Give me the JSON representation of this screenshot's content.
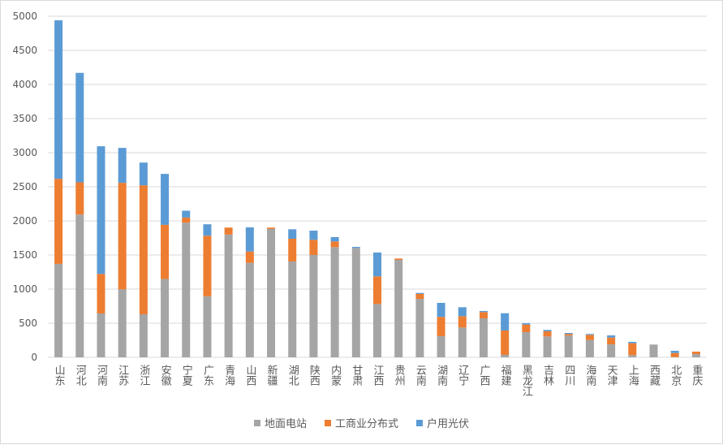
{
  "chart_data": {
    "type": "bar",
    "stacked": true,
    "title": "",
    "xlabel": "",
    "ylabel": "",
    "ylim": [
      0,
      5000
    ],
    "yticks": [
      0,
      500,
      1000,
      1500,
      2000,
      2500,
      3000,
      3500,
      4000,
      4500,
      5000
    ],
    "grid": true,
    "legend": "bottom",
    "categories": [
      "山东",
      "河北",
      "河南",
      "江苏",
      "浙江",
      "安徽",
      "宁夏",
      "广东",
      "青海",
      "山西",
      "新疆",
      "湖北",
      "陕西",
      "内蒙",
      "甘肃",
      "江西",
      "贵州",
      "云南",
      "湖南",
      "辽宁",
      "广西",
      "福建",
      "黑龙江",
      "吉林",
      "四川",
      "海南",
      "天津",
      "上海",
      "西藏",
      "北京",
      "重庆"
    ],
    "series": [
      {
        "name": "地面电站",
        "color": "#A5A5A5",
        "values": [
          1370,
          2093,
          643,
          997,
          631,
          1148,
          1974,
          894,
          1799,
          1384,
          1881,
          1405,
          1500,
          1615,
          1603,
          782,
          1428,
          857,
          310,
          437,
          571,
          36,
          369,
          306,
          318,
          254,
          190,
          32,
          187,
          4,
          48
        ]
      },
      {
        "name": "工商业分布式",
        "color": "#ED7D31",
        "values": [
          1247,
          472,
          580,
          1561,
          1891,
          794,
          75,
          889,
          103,
          167,
          20,
          333,
          222,
          83,
          0,
          405,
          20,
          72,
          282,
          166,
          92,
          357,
          111,
          75,
          24,
          75,
          99,
          174,
          0,
          59,
          35
        ]
      },
      {
        "name": "户用光伏",
        "color": "#5B9BD5",
        "values": [
          2323,
          1605,
          1871,
          512,
          333,
          747,
          100,
          167,
          0,
          354,
          0,
          139,
          135,
          64,
          16,
          349,
          0,
          15,
          206,
          131,
          16,
          253,
          20,
          20,
          15,
          13,
          32,
          20,
          0,
          32,
          0
        ]
      }
    ]
  }
}
